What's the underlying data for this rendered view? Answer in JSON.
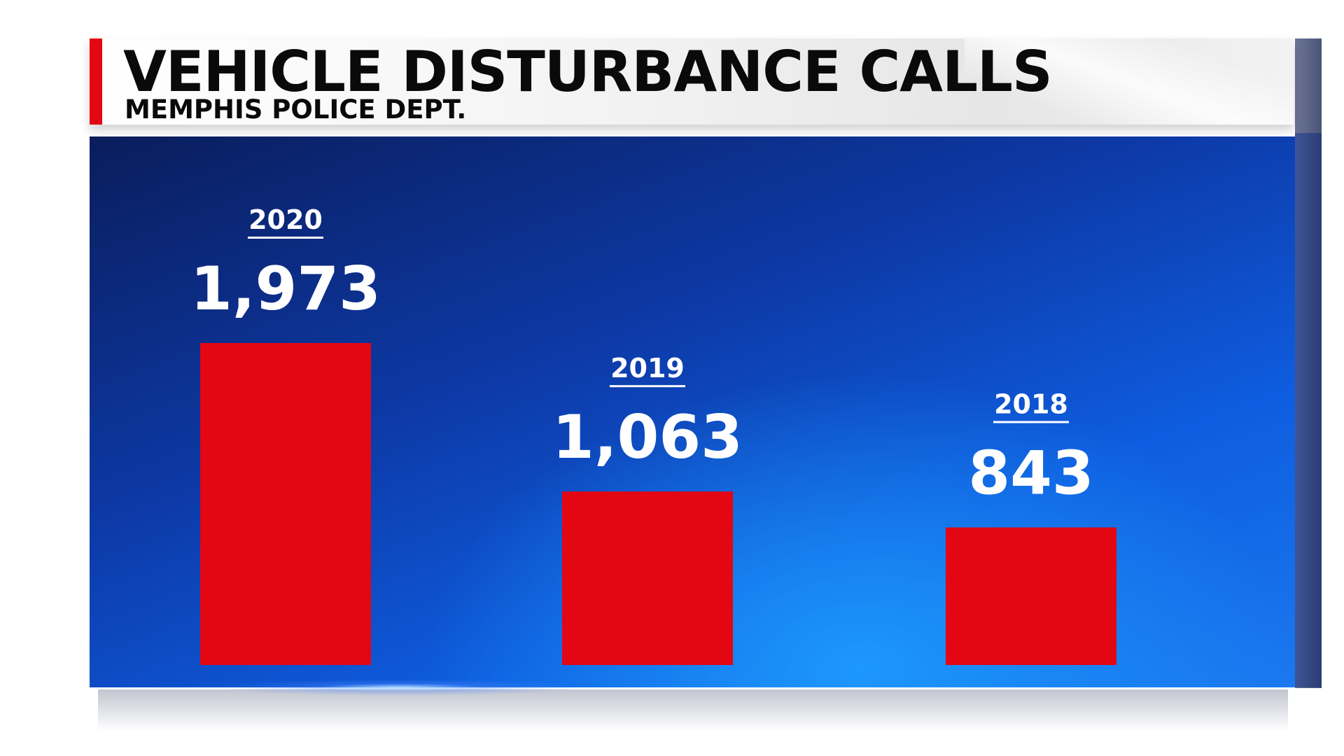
{
  "header": {
    "title": "VEHICLE DISTURBANCE CALLS",
    "subtitle": "MEMPHIS POLICE DEPT."
  },
  "colors": {
    "bar": "#e30613",
    "accent": "#e30613",
    "text": "#ffffff",
    "background_top": "#0a1d5c",
    "background_bottom": "#1a78f0"
  },
  "chart_data": {
    "type": "bar",
    "title": "VEHICLE DISTURBANCE CALLS",
    "subtitle": "MEMPHIS POLICE DEPT.",
    "categories": [
      "2020",
      "2019",
      "2018"
    ],
    "values": [
      1973,
      1063,
      843
    ],
    "value_labels": [
      "1,973",
      "1,063",
      "843"
    ],
    "xlabel": "",
    "ylabel": "",
    "grid": false,
    "legend": "none"
  }
}
